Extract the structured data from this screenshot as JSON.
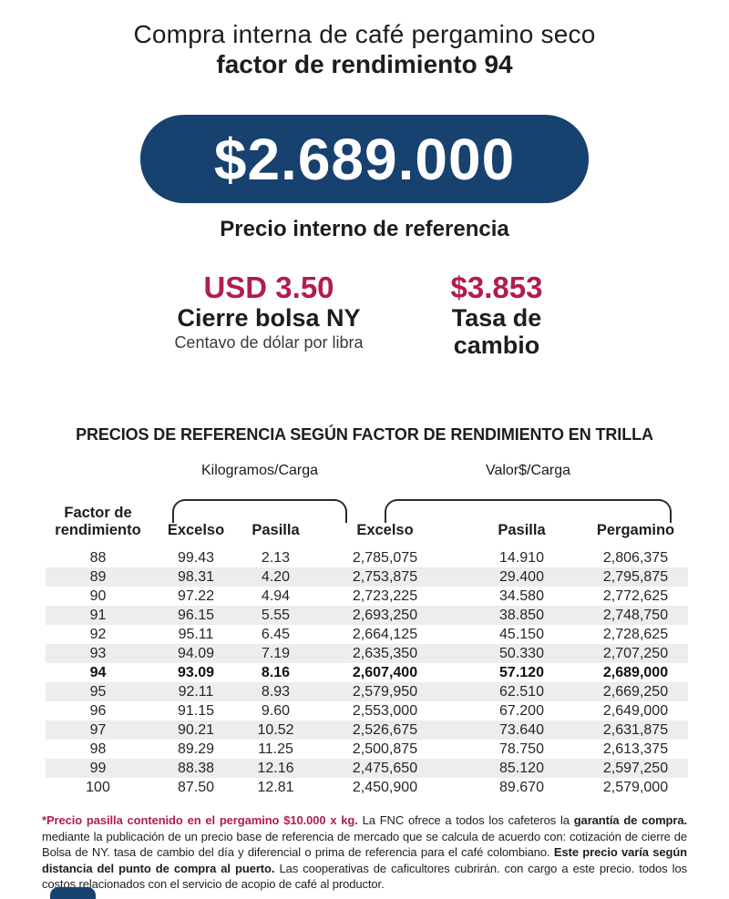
{
  "colors": {
    "navy": "#17416e",
    "crimson": "#b11d4e",
    "alt_row": "#ededed"
  },
  "header": {
    "title_line1": "Compra interna de café pergamino seco",
    "title_line2": "factor de rendimiento 94"
  },
  "banner": {
    "amount": "$2.689.000",
    "caption": "Precio interno de referencia"
  },
  "stats": {
    "ny_close": {
      "value": "USD 3.50",
      "label": "Cierre bolsa NY",
      "sublabel": "Centavo de dólar por libra"
    },
    "exchange_rate": {
      "value": "$3.853",
      "label_line1": "Tasa de",
      "label_line2": "cambio"
    }
  },
  "table": {
    "section_title": "PRECIOS DE REFERENCIA SEGÚN FACTOR DE RENDIMIENTO EN TRILLA",
    "group_kilograms": "Kilogramos/Carga",
    "group_value": "Valor$/Carga",
    "col_factor_line1": "Factor de",
    "col_factor_line2": "rendimiento",
    "col_excelso_kg": "Excelso",
    "col_pasilla_kg": "Pasilla",
    "col_excelso_val": "Excelso",
    "col_pasilla_val": "Pasilla",
    "col_pergamino": "Pergamino",
    "highlight_factor": "94",
    "rows": [
      [
        "88",
        "99.43",
        "2.13",
        "2,785,075",
        "14.910",
        "2,806,375"
      ],
      [
        "89",
        "98.31",
        "4.20",
        "2,753,875",
        "29.400",
        "2,795,875"
      ],
      [
        "90",
        "97.22",
        "4.94",
        "2,723,225",
        "34.580",
        "2,772,625"
      ],
      [
        "91",
        "96.15",
        "5.55",
        "2,693,250",
        "38.850",
        "2,748,750"
      ],
      [
        "92",
        "95.11",
        "6.45",
        "2,664,125",
        "45.150",
        "2,728,625"
      ],
      [
        "93",
        "94.09",
        "7.19",
        "2,635,350",
        "50.330",
        "2,707,250"
      ],
      [
        "94",
        "93.09",
        "8.16",
        "2,607,400",
        "57.120",
        "2,689,000"
      ],
      [
        "95",
        "92.11",
        "8.93",
        "2,579,950",
        "62.510",
        "2,669,250"
      ],
      [
        "96",
        "91.15",
        "9.60",
        "2,553,000",
        "67.200",
        "2,649,000"
      ],
      [
        "97",
        "90.21",
        "10.52",
        "2,526,675",
        "73.640",
        "2,631,875"
      ],
      [
        "98",
        "89.29",
        "11.25",
        "2,500,875",
        "78.750",
        "2,613,375"
      ],
      [
        "99",
        "88.38",
        "12.16",
        "2,475,650",
        "85.120",
        "2,597,250"
      ],
      [
        "100",
        "87.50",
        "12.81",
        "2,450,900",
        "89.670",
        "2,579,000"
      ]
    ]
  },
  "footnote": {
    "red_bold": "*Precio pasilla contenido en el pergamino $10.000 x kg.",
    "text1": " La FNC ofrece a todos los cafeteros la ",
    "bold1": "garantía de compra.",
    "text2": " mediante la publicación de un precio base de referencia de mercado que se calcula de acuerdo con: cotización de cierre de Bolsa de NY. tasa de cambio del día y diferencial o prima de referencia para el café colombiano. ",
    "bold2": "Este precio varía según distancia del punto de compra al puerto.",
    "text3": " Las cooperativas de caficultores cubrirán. con cargo a este precio. todos los costos relacionados con el servicio de acopio de café al productor."
  }
}
